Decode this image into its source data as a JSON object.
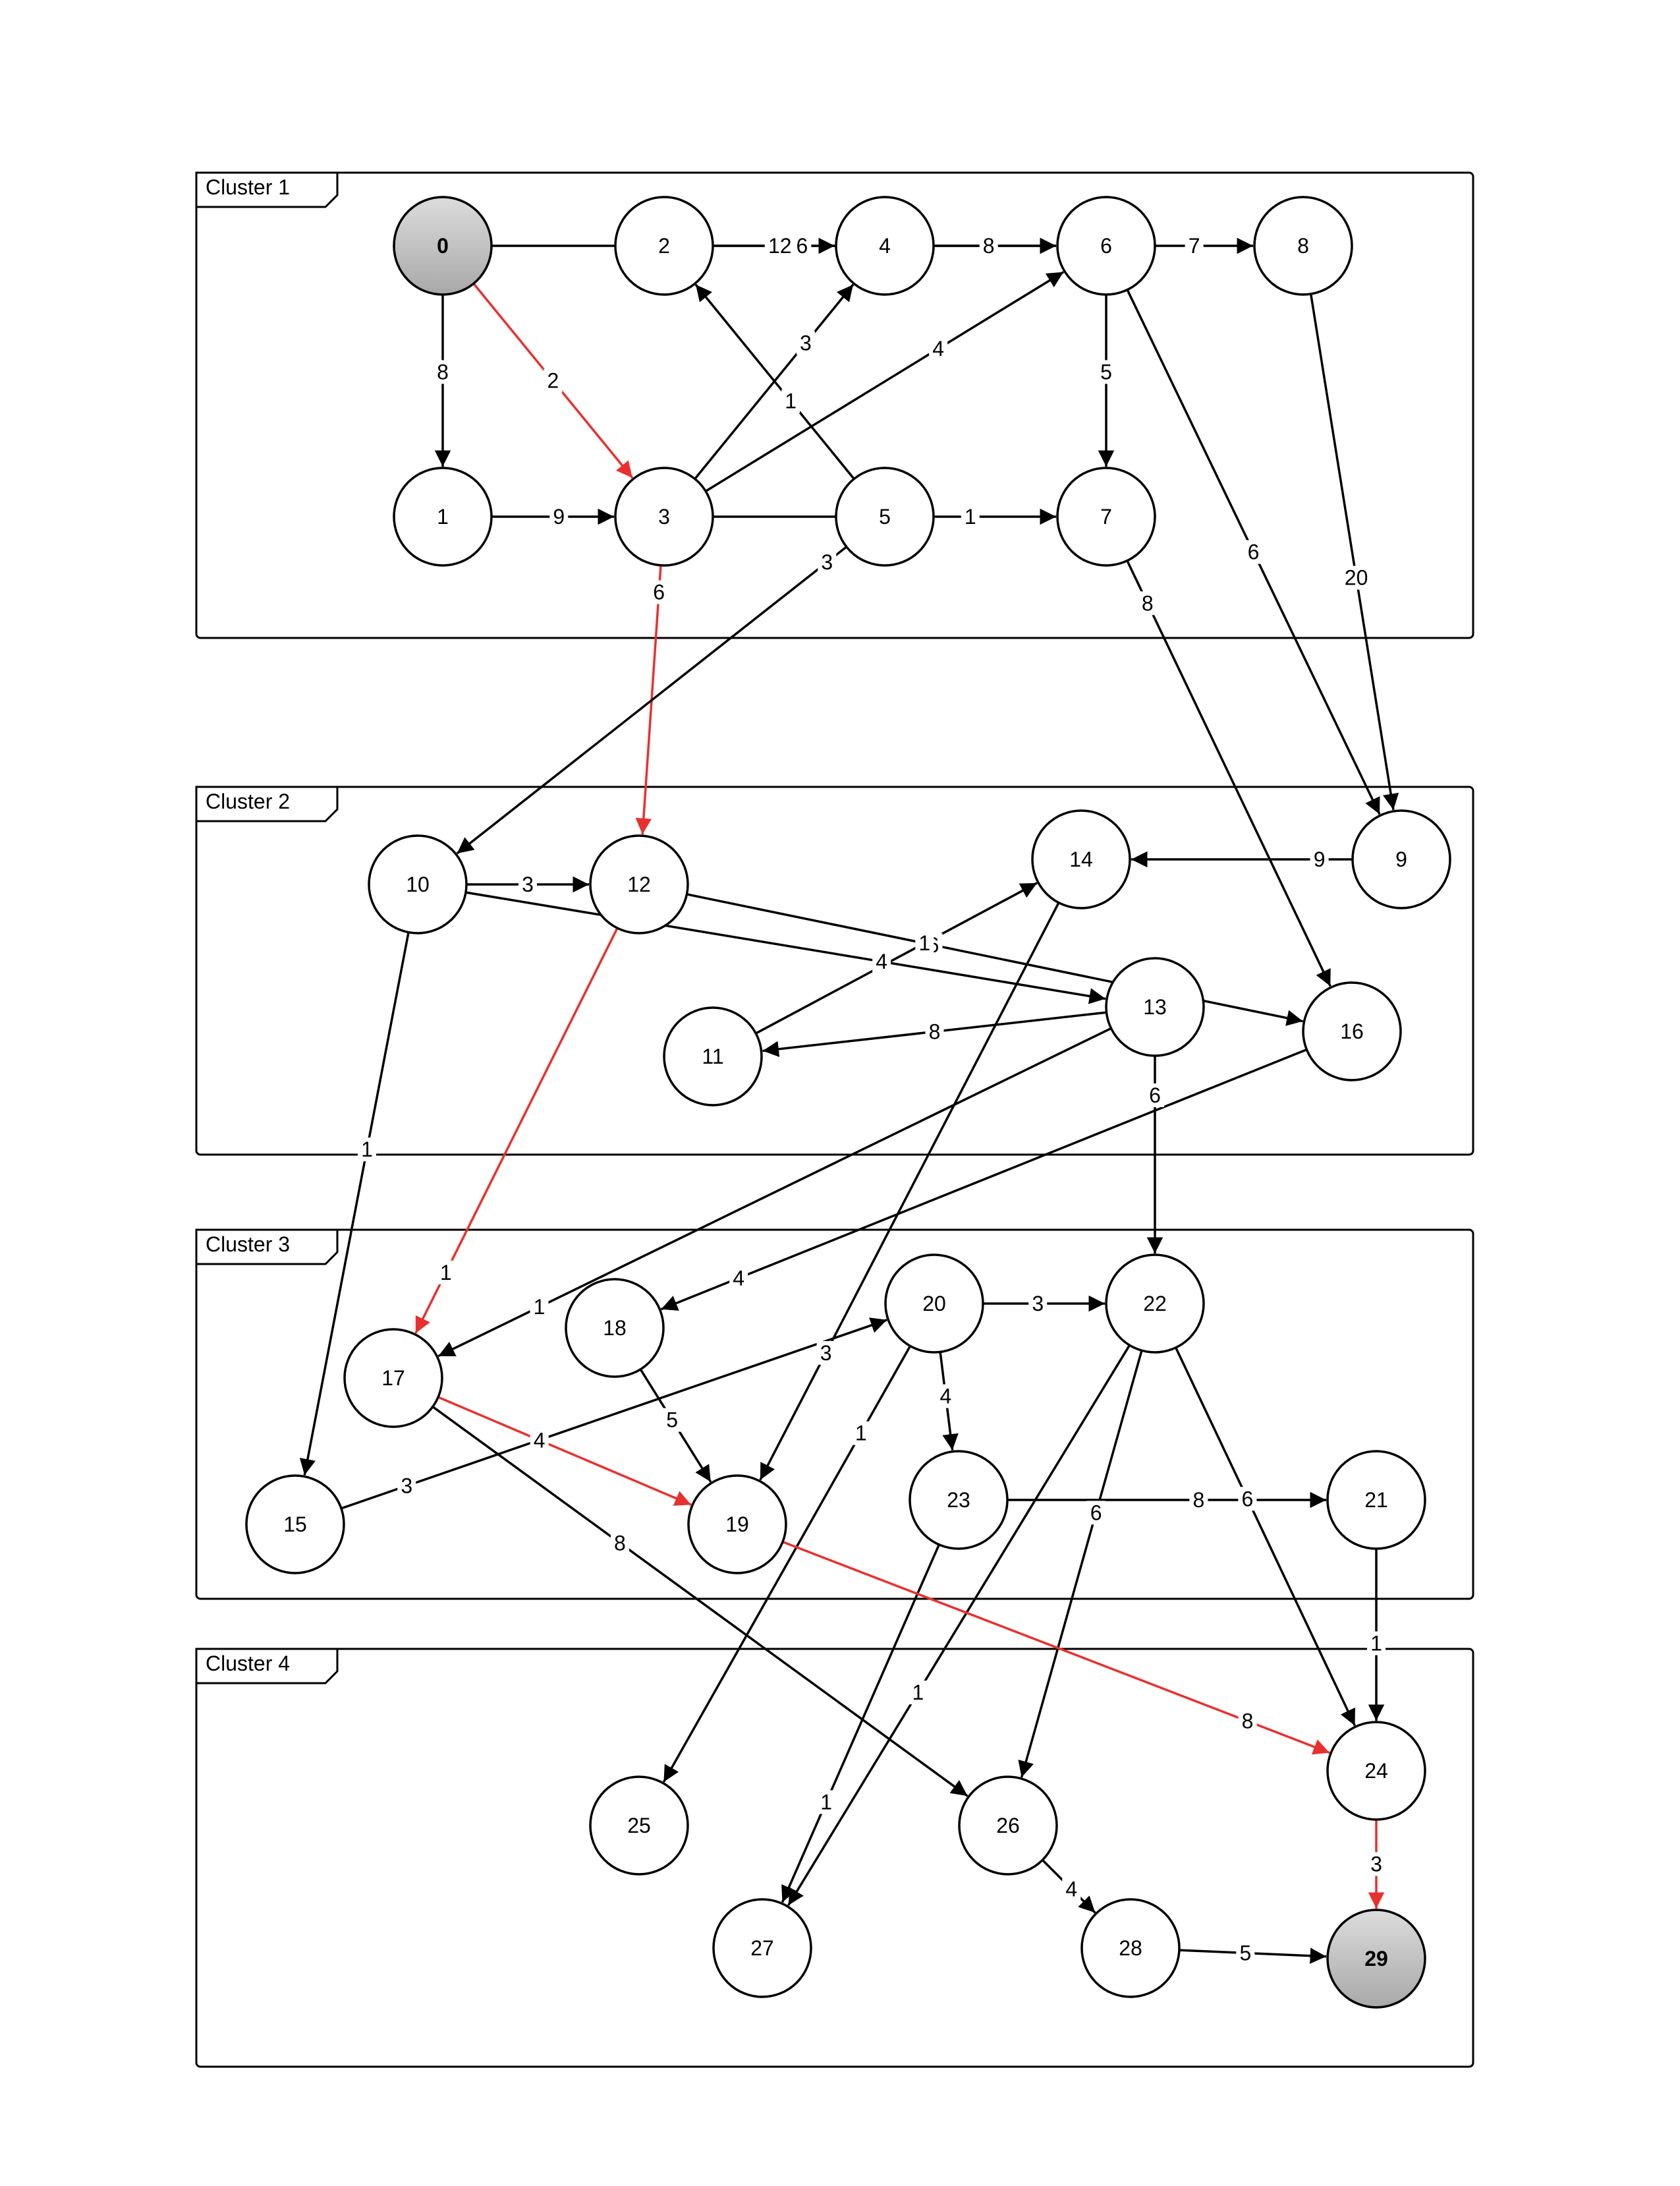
{
  "colors": {
    "edge": "#000000",
    "path": "#e8312f",
    "highlight_fill_top": "#dcdcdc",
    "highlight_fill_bottom": "#a8a8a8"
  },
  "clusters": [
    {
      "id": "c1",
      "label": "Cluster 1"
    },
    {
      "id": "c2",
      "label": "Cluster 2"
    },
    {
      "id": "c3",
      "label": "Cluster 3"
    },
    {
      "id": "c4",
      "label": "Cluster 4"
    }
  ],
  "nodes": [
    {
      "id": "0",
      "label": "0",
      "highlight": true
    },
    {
      "id": "1",
      "label": "1"
    },
    {
      "id": "2",
      "label": "2"
    },
    {
      "id": "3",
      "label": "3"
    },
    {
      "id": "4",
      "label": "4"
    },
    {
      "id": "5",
      "label": "5"
    },
    {
      "id": "6",
      "label": "6"
    },
    {
      "id": "7",
      "label": "7"
    },
    {
      "id": "8",
      "label": "8"
    },
    {
      "id": "9",
      "label": "9"
    },
    {
      "id": "10",
      "label": "10"
    },
    {
      "id": "11",
      "label": "11"
    },
    {
      "id": "12",
      "label": "12"
    },
    {
      "id": "13",
      "label": "13"
    },
    {
      "id": "14",
      "label": "14"
    },
    {
      "id": "15",
      "label": "15"
    },
    {
      "id": "16",
      "label": "16"
    },
    {
      "id": "17",
      "label": "17"
    },
    {
      "id": "18",
      "label": "18"
    },
    {
      "id": "19",
      "label": "19"
    },
    {
      "id": "20",
      "label": "20"
    },
    {
      "id": "21",
      "label": "21"
    },
    {
      "id": "22",
      "label": "22"
    },
    {
      "id": "23",
      "label": "23"
    },
    {
      "id": "24",
      "label": "24"
    },
    {
      "id": "25",
      "label": "25"
    },
    {
      "id": "26",
      "label": "26"
    },
    {
      "id": "27",
      "label": "27"
    },
    {
      "id": "28",
      "label": "28"
    },
    {
      "id": "29",
      "label": "29",
      "highlight": true
    }
  ],
  "edges": [
    {
      "from": "0",
      "to": "6",
      "weight": "6"
    },
    {
      "from": "0",
      "to": "1",
      "weight": "8"
    },
    {
      "from": "0",
      "to": "3",
      "weight": "2",
      "path": true
    },
    {
      "from": "2",
      "to": "4",
      "weight": "12"
    },
    {
      "from": "4",
      "to": "6",
      "weight": "8"
    },
    {
      "from": "6",
      "to": "8",
      "weight": "7"
    },
    {
      "from": "1",
      "to": "3",
      "weight": "9"
    },
    {
      "from": "3",
      "to": "4",
      "weight": "3"
    },
    {
      "from": "3",
      "to": "6",
      "weight": "4"
    },
    {
      "from": "5",
      "to": "2",
      "weight": "1"
    },
    {
      "from": "6",
      "to": "7",
      "weight": "5"
    },
    {
      "from": "3",
      "to": "7",
      "weight": "1"
    },
    {
      "from": "6",
      "to": "9",
      "weight": "6"
    },
    {
      "from": "8",
      "to": "9",
      "weight": "20"
    },
    {
      "from": "3",
      "to": "12",
      "weight": "6",
      "path": true
    },
    {
      "from": "5",
      "to": "10",
      "weight": "3"
    },
    {
      "from": "7",
      "to": "16",
      "weight": "8"
    },
    {
      "from": "10",
      "to": "12",
      "weight": "3"
    },
    {
      "from": "12",
      "to": "16",
      "weight": "6"
    },
    {
      "from": "9",
      "to": "14",
      "weight": "9"
    },
    {
      "from": "11",
      "to": "14",
      "weight": "1"
    },
    {
      "from": "10",
      "to": "13",
      "weight": "4"
    },
    {
      "from": "13",
      "to": "11",
      "weight": "8"
    },
    {
      "from": "13",
      "to": "22",
      "weight": "6"
    },
    {
      "from": "10",
      "to": "15",
      "weight": "1"
    },
    {
      "from": "12",
      "to": "17",
      "weight": "1",
      "path": true
    },
    {
      "from": "13",
      "to": "17",
      "weight": "1"
    },
    {
      "from": "16",
      "to": "18",
      "weight": "4"
    },
    {
      "from": "14",
      "to": "19",
      "weight": "3"
    },
    {
      "from": "20",
      "to": "22",
      "weight": "3"
    },
    {
      "from": "15",
      "to": "20",
      "weight": "3"
    },
    {
      "from": "17",
      "to": "19",
      "weight": "4",
      "path": true
    },
    {
      "from": "18",
      "to": "19",
      "weight": "5"
    },
    {
      "from": "20",
      "to": "23",
      "weight": "4"
    },
    {
      "from": "23",
      "to": "21",
      "weight": "8"
    },
    {
      "from": "20",
      "to": "25",
      "weight": "1"
    },
    {
      "from": "17",
      "to": "26",
      "weight": "8"
    },
    {
      "from": "22",
      "to": "26",
      "weight": "6"
    },
    {
      "from": "22",
      "to": "24",
      "weight": "6"
    },
    {
      "from": "22",
      "to": "27",
      "weight": "1"
    },
    {
      "from": "23",
      "to": "27",
      "weight": "1"
    },
    {
      "from": "21",
      "to": "24",
      "weight": "1"
    },
    {
      "from": "19",
      "to": "24",
      "weight": "8",
      "path": true
    },
    {
      "from": "24",
      "to": "29",
      "weight": "3",
      "path": true
    },
    {
      "from": "26",
      "to": "28",
      "weight": "4"
    },
    {
      "from": "28",
      "to": "29",
      "weight": "5"
    }
  ]
}
